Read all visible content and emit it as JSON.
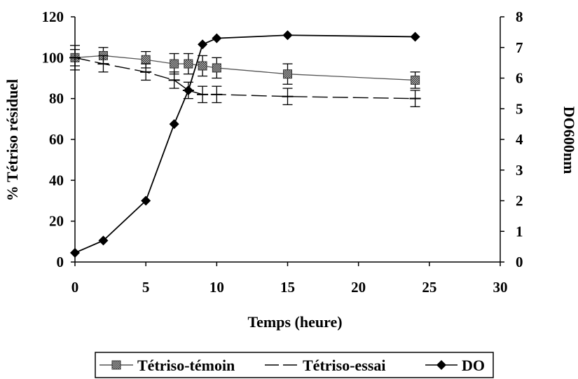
{
  "chart_data": {
    "type": "line",
    "xlabel": "Temps (heure)",
    "ylabel": "% Tétriso résiduel",
    "y2label": "DO600nm",
    "xlim": [
      0,
      30
    ],
    "ylim": [
      0,
      120
    ],
    "y2lim": [
      0,
      8
    ],
    "xticks": [
      "0",
      "5",
      "10",
      "15",
      "20",
      "25",
      "30"
    ],
    "yticks": [
      "0",
      "20",
      "40",
      "60",
      "80",
      "100",
      "120"
    ],
    "y2ticks": [
      "0",
      "1",
      "2",
      "3",
      "4",
      "5",
      "6",
      "7",
      "8"
    ],
    "grid": false,
    "legend_position": "bottom",
    "series": [
      {
        "name": "Tétriso-témoin",
        "axis": "left",
        "line_style": "solid",
        "marker": "square-hatched",
        "color": "#555555",
        "x": [
          0,
          2,
          5,
          7,
          8,
          9,
          10,
          15,
          24
        ],
        "y": [
          100,
          101,
          99,
          97,
          97,
          96,
          95,
          92,
          89
        ],
        "error": [
          4,
          4,
          4,
          5,
          5,
          5,
          5,
          5,
          4
        ]
      },
      {
        "name": "Tétriso-essai",
        "axis": "left",
        "line_style": "dashed",
        "marker": "dash",
        "color": "#000000",
        "x": [
          0,
          2,
          5,
          7,
          8,
          9,
          10,
          15,
          24
        ],
        "y": [
          100,
          97,
          93,
          89,
          84,
          82,
          82,
          81,
          80
        ],
        "error": [
          6,
          4,
          4,
          4,
          4,
          4,
          4,
          4,
          4
        ]
      },
      {
        "name": "DO",
        "axis": "right",
        "line_style": "solid",
        "marker": "diamond",
        "color": "#000000",
        "x": [
          0,
          2,
          5,
          7,
          8,
          9,
          10,
          15,
          24
        ],
        "y": [
          0.3,
          0.7,
          2.0,
          4.5,
          5.6,
          7.1,
          7.3,
          7.4,
          7.35
        ]
      }
    ]
  }
}
